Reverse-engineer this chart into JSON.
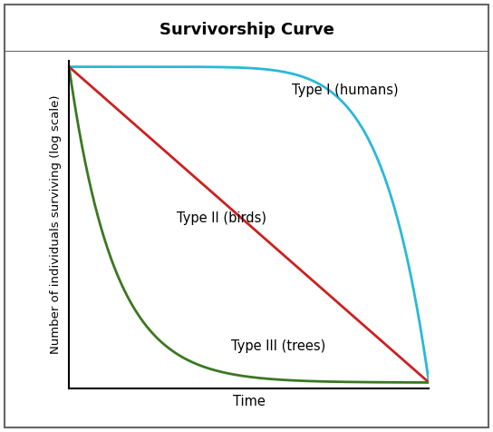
{
  "title": "Survivorship Curve",
  "title_bg_color": "#e8c8d8",
  "xlabel": "Time",
  "ylabel": "Number of individuals surviving (log scale)",
  "type1_label": "Type I (humans)",
  "type2_label": "Type II (birds)",
  "type3_label": "Type III (trees)",
  "type1_color": "#29b8d8",
  "type2_color": "#cc2020",
  "type3_color": "#3a7820",
  "line_width": 2.0,
  "bg_color": "#ffffff",
  "outer_bg_color": "#ffffff",
  "border_color": "#666666",
  "title_fontsize": 13,
  "label_fontsize": 10.5,
  "axis_label_fontsize": 9.5
}
